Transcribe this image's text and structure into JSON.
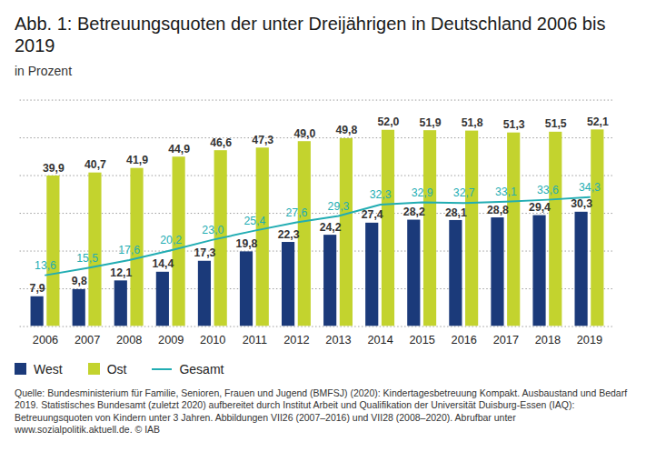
{
  "chart_data": {
    "type": "bar",
    "title": "Abb. 1: Betreuungsquoten der unter Dreijährigen in Deutschland 2006 bis 2019",
    "subtitle": "in Prozent",
    "source": "Quelle: Bundesministerium für Familie, Senioren, Frauen und Jugend (BMFSJ) (2020): Kindertagesbetreuung Kompakt. Ausbaustand und Bedarf 2019. Statistisches Bundesamt (zuletzt 2020) aufbereitet durch Institut Arbeit und Qualifikation der Universität Duisburg-Essen (IAQ): Betreuungsquoten von Kindern unter 3 Jahren. Abbildungen VII26 (2007–2016) und VII28 (2008–2020). Abrufbar unter www.sozialpolitik.aktuell.de. © IAB",
    "categories": [
      "2006",
      "2007",
      "2008",
      "2009",
      "2010",
      "2011",
      "2012",
      "2013",
      "2014",
      "2015",
      "2016",
      "2017",
      "2018",
      "2019"
    ],
    "series": [
      {
        "name": "West",
        "type": "bar",
        "color": "#1b3a7a",
        "values": [
          7.9,
          9.8,
          12.1,
          14.4,
          17.3,
          19.8,
          22.3,
          24.2,
          27.4,
          28.2,
          28.1,
          28.8,
          29.4,
          30.3
        ],
        "value_labels": [
          "7,9",
          "9,8",
          "12,1",
          "14,4",
          "17,3",
          "19,8",
          "22,3",
          "24,2",
          "27,4",
          "28,2",
          "28,1",
          "28,8",
          "29,4",
          "30,3"
        ]
      },
      {
        "name": "Ost",
        "type": "bar",
        "color": "#c3d32e",
        "values": [
          39.9,
          40.7,
          41.9,
          44.9,
          46.6,
          47.3,
          49.0,
          49.8,
          52.0,
          51.9,
          51.8,
          51.3,
          51.5,
          52.1
        ],
        "value_labels": [
          "39,9",
          "40,7",
          "41,9",
          "44,9",
          "46,6",
          "47,3",
          "49,0",
          "49,8",
          "52,0",
          "51,9",
          "51,8",
          "51,3",
          "51,5",
          "52,1"
        ]
      },
      {
        "name": "Gesamt",
        "type": "line",
        "color": "#22adb3",
        "values": [
          13.6,
          15.5,
          17.6,
          20.2,
          23.0,
          25.4,
          27.6,
          29.3,
          32.3,
          32.9,
          32.7,
          33.1,
          33.6,
          34.3
        ],
        "value_labels": [
          "13,6",
          "15,5",
          "17,6",
          "20,2",
          "23,0",
          "25,4",
          "27,6",
          "29,3",
          "32,3",
          "32,9",
          "32,7",
          "33,1",
          "33,6",
          "34,3"
        ]
      }
    ],
    "ylim": [
      0,
      60
    ],
    "yticks": [
      0,
      10,
      20,
      30,
      40,
      50,
      60
    ],
    "grid": true,
    "tick_labels": "x",
    "data_labels": true,
    "legend": "bottom"
  }
}
